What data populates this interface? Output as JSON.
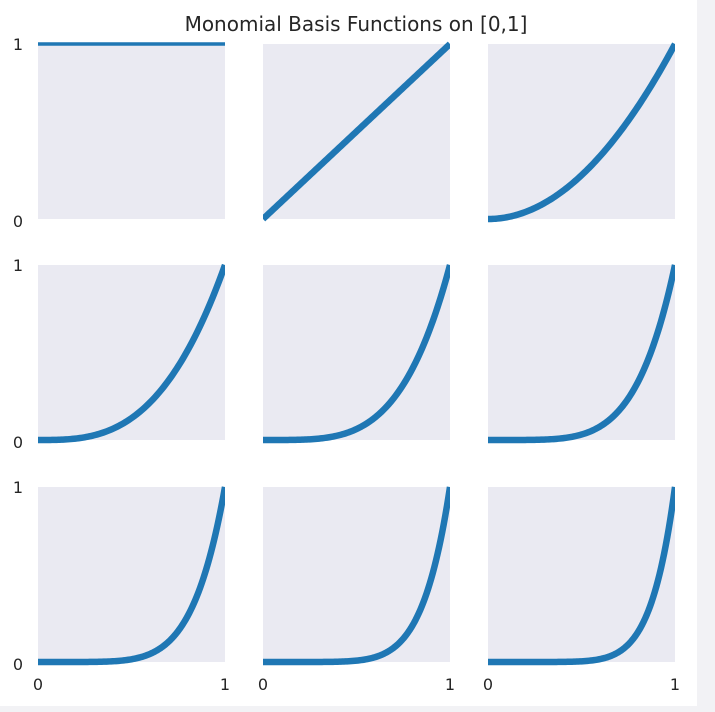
{
  "chart_data": {
    "type": "line",
    "title": "Monomial Basis Functions on [0,1]",
    "grid": false,
    "layout": "3x3 small multiples",
    "xlim": [
      0,
      1
    ],
    "ylim": [
      0,
      1
    ],
    "x_ticks": [
      "0",
      "1"
    ],
    "y_ticks": [
      "0",
      "1"
    ],
    "line_color": "#1f77b4",
    "panel_background": "#eaeaf2",
    "panels": [
      {
        "function": "x^0",
        "exponent": 0
      },
      {
        "function": "x^1",
        "exponent": 1
      },
      {
        "function": "x^2",
        "exponent": 2
      },
      {
        "function": "x^3",
        "exponent": 3
      },
      {
        "function": "x^4",
        "exponent": 4
      },
      {
        "function": "x^5",
        "exponent": 5
      },
      {
        "function": "x^6",
        "exponent": 6
      },
      {
        "function": "x^7",
        "exponent": 7
      },
      {
        "function": "x^8",
        "exponent": 8
      }
    ]
  }
}
